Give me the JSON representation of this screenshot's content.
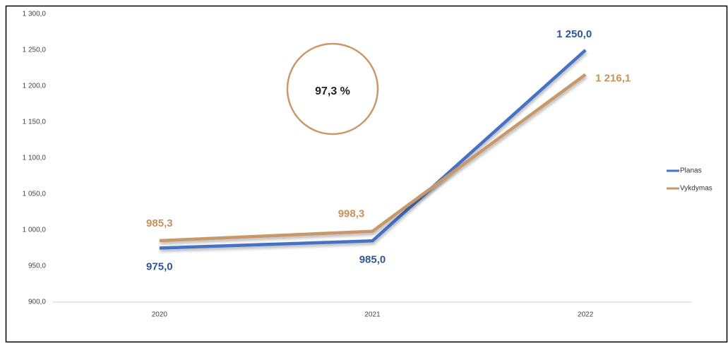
{
  "chart_data": {
    "type": "line",
    "annotation": "97,3 %",
    "categories": [
      "2020",
      "2021",
      "2022"
    ],
    "series": [
      {
        "name": "Planas",
        "color": "#4472c4",
        "label_color": "#2f5597",
        "values": [
          975.0,
          985.0,
          1250.0
        ],
        "value_labels": [
          "975,0",
          "985,0",
          "1 250,0"
        ]
      },
      {
        "name": "Vykdymas",
        "color": "#c9986a",
        "label_color": "#c8915a",
        "values": [
          985.3,
          998.3,
          1216.1
        ],
        "value_labels": [
          "985,3",
          "998,3",
          "1 216,1"
        ]
      }
    ],
    "ylim": [
      900,
      1300
    ],
    "yticks": [
      {
        "value": 900,
        "label": "900,0"
      },
      {
        "value": 950,
        "label": "950,0"
      },
      {
        "value": 1000,
        "label": "1 000,0"
      },
      {
        "value": 1050,
        "label": "1 050,0"
      },
      {
        "value": 1100,
        "label": "1 100,0"
      },
      {
        "value": 1150,
        "label": "1 150,0"
      },
      {
        "value": 1200,
        "label": "1 200,0"
      },
      {
        "value": 1250,
        "label": "1 250,0"
      },
      {
        "value": 1300,
        "label": "1 300,0"
      }
    ],
    "grid": false,
    "legend": "right"
  }
}
